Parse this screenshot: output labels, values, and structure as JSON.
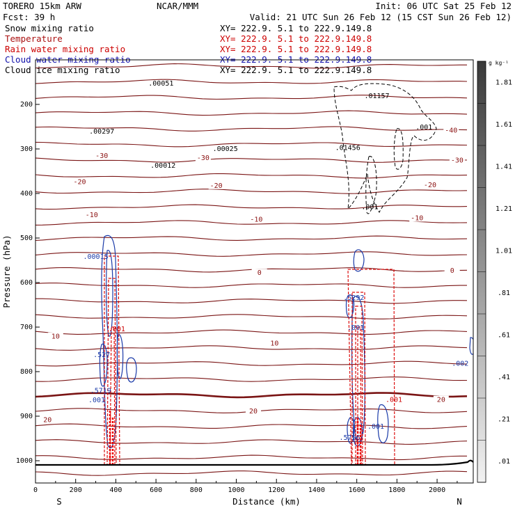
{
  "header": {
    "model": "TORERO  15km ARW",
    "org": "NCAR/MMM",
    "init": "Init: 06 UTC Sat 25 Feb 12",
    "fcst": "Fcst:   39 h",
    "valid": "Valid: 21 UTC Sun 26 Feb 12 (15 CST Sun 26 Feb 12)",
    "fields": [
      {
        "label": "Snow mixing ratio",
        "color": "#000000",
        "xy": "XY= 222.9.  5.1 to 222.9.149.8",
        "xy_color": "#000000"
      },
      {
        "label": "Temperature",
        "color": "#aa1010",
        "xy": "XY= 222.9.  5.1 to 222.9.149.8",
        "xy_color": "#cc0000"
      },
      {
        "label": "Rain water mixing ratio",
        "color": "#cc0000",
        "xy": "XY= 222.9.  5.1 to 222.9.149.8",
        "xy_color": "#cc0000"
      },
      {
        "label": "Cloud water mixing ratio",
        "color": "#1010aa",
        "xy": "XY= 222.9.  5.1 to 222.9.149.8",
        "xy_color": "#1010aa"
      },
      {
        "label": "Cloud ice mixing ratio",
        "color": "#000000",
        "xy": "XY= 222.9.  5.1 to 222.9.149.8",
        "xy_color": "#000000"
      }
    ]
  },
  "chart_data": {
    "type": "cross-section",
    "xlabel": "Distance (km)",
    "ylabel": "Pressure (hPa)",
    "xlim": [
      0,
      2180
    ],
    "ylim": [
      1050,
      100
    ],
    "x_ticks": [
      0,
      200,
      400,
      600,
      800,
      1000,
      1200,
      1400,
      1600,
      1800,
      2000
    ],
    "y_ticks": [
      200,
      300,
      400,
      500,
      600,
      700,
      800,
      900,
      1000
    ],
    "left_end_label": "S",
    "right_end_label": "N",
    "colorbar": {
      "unit": "g kg⁻¹",
      "labels": [
        ".01",
        ".21",
        ".41",
        ".61",
        ".81",
        "1.01",
        "1.21",
        "1.41",
        "1.61",
        "1.81"
      ],
      "color_light": "#f2f2f2",
      "color_dark": "#3a3a3a"
    },
    "temperature_contour_labels": [
      {
        "text": "-40",
        "x": 2070,
        "p": 260
      },
      {
        "text": "-30",
        "x": 330,
        "p": 317
      },
      {
        "text": "-30",
        "x": 835,
        "p": 322
      },
      {
        "text": "-30",
        "x": 2100,
        "p": 327
      },
      {
        "text": "-20",
        "x": 220,
        "p": 376
      },
      {
        "text": "-20",
        "x": 900,
        "p": 384
      },
      {
        "text": "-20",
        "x": 1965,
        "p": 383
      },
      {
        "text": "-10",
        "x": 280,
        "p": 450
      },
      {
        "text": "-10",
        "x": 1100,
        "p": 460
      },
      {
        "text": "-10",
        "x": 1900,
        "p": 457
      },
      {
        "text": "0",
        "x": 1115,
        "p": 580
      },
      {
        "text": "0",
        "x": 2075,
        "p": 575
      },
      {
        "text": "10",
        "x": 100,
        "p": 723
      },
      {
        "text": "10",
        "x": 1190,
        "p": 738
      },
      {
        "text": "20",
        "x": 60,
        "p": 910
      },
      {
        "text": "20",
        "x": 1085,
        "p": 891
      },
      {
        "text": "20",
        "x": 2020,
        "p": 865
      }
    ],
    "maxima": [
      {
        "text": ".00051",
        "x": 625,
        "p": 158
      },
      {
        "text": ".01157",
        "x": 1700,
        "p": 186
      },
      {
        "text": ".00297",
        "x": 330,
        "p": 266
      },
      {
        "text": ".00025",
        "x": 945,
        "p": 305
      },
      {
        "text": ".00012",
        "x": 635,
        "p": 342
      },
      {
        "text": ".01456",
        "x": 1555,
        "p": 302
      },
      {
        "text": ".001",
        "x": 1935,
        "p": 256
      },
      {
        "text": ".001",
        "x": 1665,
        "p": 435
      },
      {
        "text": ".00015",
        "x": 300,
        "p": 547
      },
      {
        "text": ".5292",
        "x": 1585,
        "p": 639
      },
      {
        "text": ".001",
        "x": 1595,
        "p": 706
      },
      {
        "text": ".001",
        "x": 405,
        "p": 709
      },
      {
        "text": ".527",
        "x": 330,
        "p": 767
      },
      {
        "text": ".5719",
        "x": 325,
        "p": 848
      },
      {
        "text": ".001",
        "x": 305,
        "p": 869
      },
      {
        "text": ".001",
        "x": 1785,
        "p": 868
      },
      {
        "text": ".001",
        "x": 1695,
        "p": 928
      },
      {
        "text": ".5756",
        "x": 1565,
        "p": 953
      },
      {
        "text": ".002",
        "x": 2115,
        "p": 787
      }
    ]
  }
}
